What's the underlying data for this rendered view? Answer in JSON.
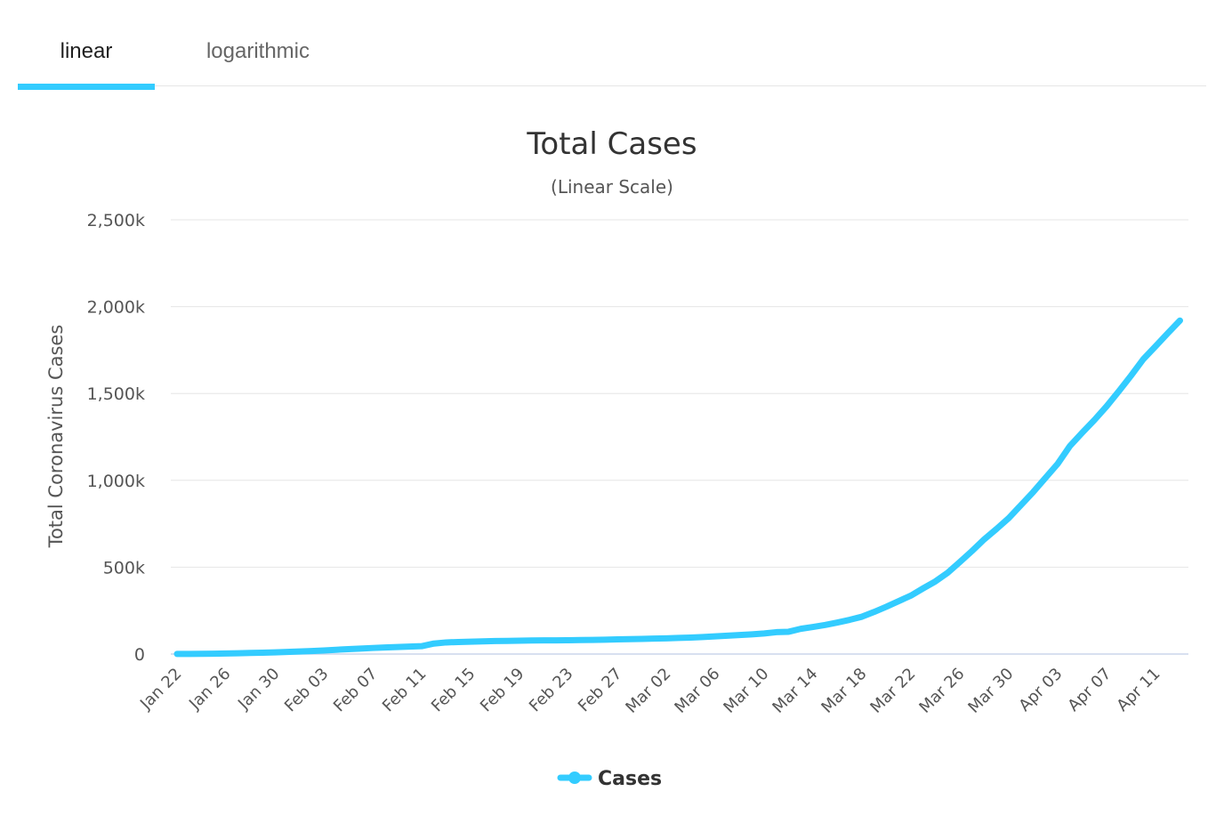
{
  "tabs": [
    {
      "label": "linear",
      "active": true
    },
    {
      "label": "logarithmic",
      "active": false
    }
  ],
  "colors": {
    "accent": "#33ccff",
    "grid": "#e6e6e6",
    "axis": "#ccd6eb"
  },
  "chart_data": {
    "type": "line",
    "title": "Total Cases",
    "subtitle": "(Linear Scale)",
    "xlabel": "",
    "ylabel": "Total Coronavirus Cases",
    "ylim": [
      0,
      2500000
    ],
    "yticks": [
      0,
      500000,
      1000000,
      1500000,
      2000000,
      2500000
    ],
    "ytick_labels": [
      "0",
      "500k",
      "1,000k",
      "1,500k",
      "2,000k",
      "2,500k"
    ],
    "x_tick_labels": [
      "Jan 22",
      "Jan 26",
      "Jan 30",
      "Feb 03",
      "Feb 07",
      "Feb 11",
      "Feb 15",
      "Feb 19",
      "Feb 23",
      "Feb 27",
      "Mar 02",
      "Mar 06",
      "Mar 10",
      "Mar 14",
      "Mar 18",
      "Mar 22",
      "Mar 26",
      "Mar 30",
      "Apr 03",
      "Apr 07",
      "Apr 11"
    ],
    "grid": true,
    "legend": "bottom-center",
    "series": [
      {
        "name": "Cases",
        "color": "#33ccff",
        "x": [
          "Jan 22",
          "Jan 23",
          "Jan 24",
          "Jan 25",
          "Jan 26",
          "Jan 27",
          "Jan 28",
          "Jan 29",
          "Jan 30",
          "Jan 31",
          "Feb 01",
          "Feb 02",
          "Feb 03",
          "Feb 04",
          "Feb 05",
          "Feb 06",
          "Feb 07",
          "Feb 08",
          "Feb 09",
          "Feb 10",
          "Feb 11",
          "Feb 12",
          "Feb 13",
          "Feb 14",
          "Feb 15",
          "Feb 16",
          "Feb 17",
          "Feb 18",
          "Feb 19",
          "Feb 20",
          "Feb 21",
          "Feb 22",
          "Feb 23",
          "Feb 24",
          "Feb 25",
          "Feb 26",
          "Feb 27",
          "Feb 28",
          "Feb 29",
          "Mar 01",
          "Mar 02",
          "Mar 03",
          "Mar 04",
          "Mar 05",
          "Mar 06",
          "Mar 07",
          "Mar 08",
          "Mar 09",
          "Mar 10",
          "Mar 11",
          "Mar 12",
          "Mar 13",
          "Mar 14",
          "Mar 15",
          "Mar 16",
          "Mar 17",
          "Mar 18",
          "Mar 19",
          "Mar 20",
          "Mar 21",
          "Mar 22",
          "Mar 23",
          "Mar 24",
          "Mar 25",
          "Mar 26",
          "Mar 27",
          "Mar 28",
          "Mar 29",
          "Mar 30",
          "Mar 31",
          "Apr 01",
          "Apr 02",
          "Apr 03",
          "Apr 04",
          "Apr 05",
          "Apr 06",
          "Apr 07",
          "Apr 08",
          "Apr 09",
          "Apr 10",
          "Apr 11",
          "Apr 12",
          "Apr 13"
        ],
        "values": [
          580,
          850,
          1300,
          2000,
          2900,
          4500,
          6100,
          7800,
          9800,
          11900,
          14500,
          17400,
          20600,
          24600,
          28300,
          31500,
          34900,
          37600,
          40600,
          43100,
          45200,
          60400,
          66900,
          69300,
          71300,
          73300,
          75200,
          75700,
          76700,
          77800,
          78800,
          79000,
          79600,
          80600,
          81500,
          82800,
          84200,
          86100,
          87400,
          89000,
          90400,
          92900,
          95100,
          97900,
          101800,
          105800,
          109800,
          113600,
          118500,
          125900,
          128300,
          145300,
          156100,
          167500,
          181500,
          197100,
          214900,
          242500,
          272400,
          304500,
          336300,
          378200,
          418000,
          467500,
          529500,
          593300,
          660700,
          720100,
          782400,
          857500,
          932600,
          1013900,
          1095000,
          1197300,
          1273700,
          1347000,
          1426100,
          1513000,
          1602800,
          1697300,
          1771500,
          1846700,
          1920000
        ]
      }
    ]
  }
}
